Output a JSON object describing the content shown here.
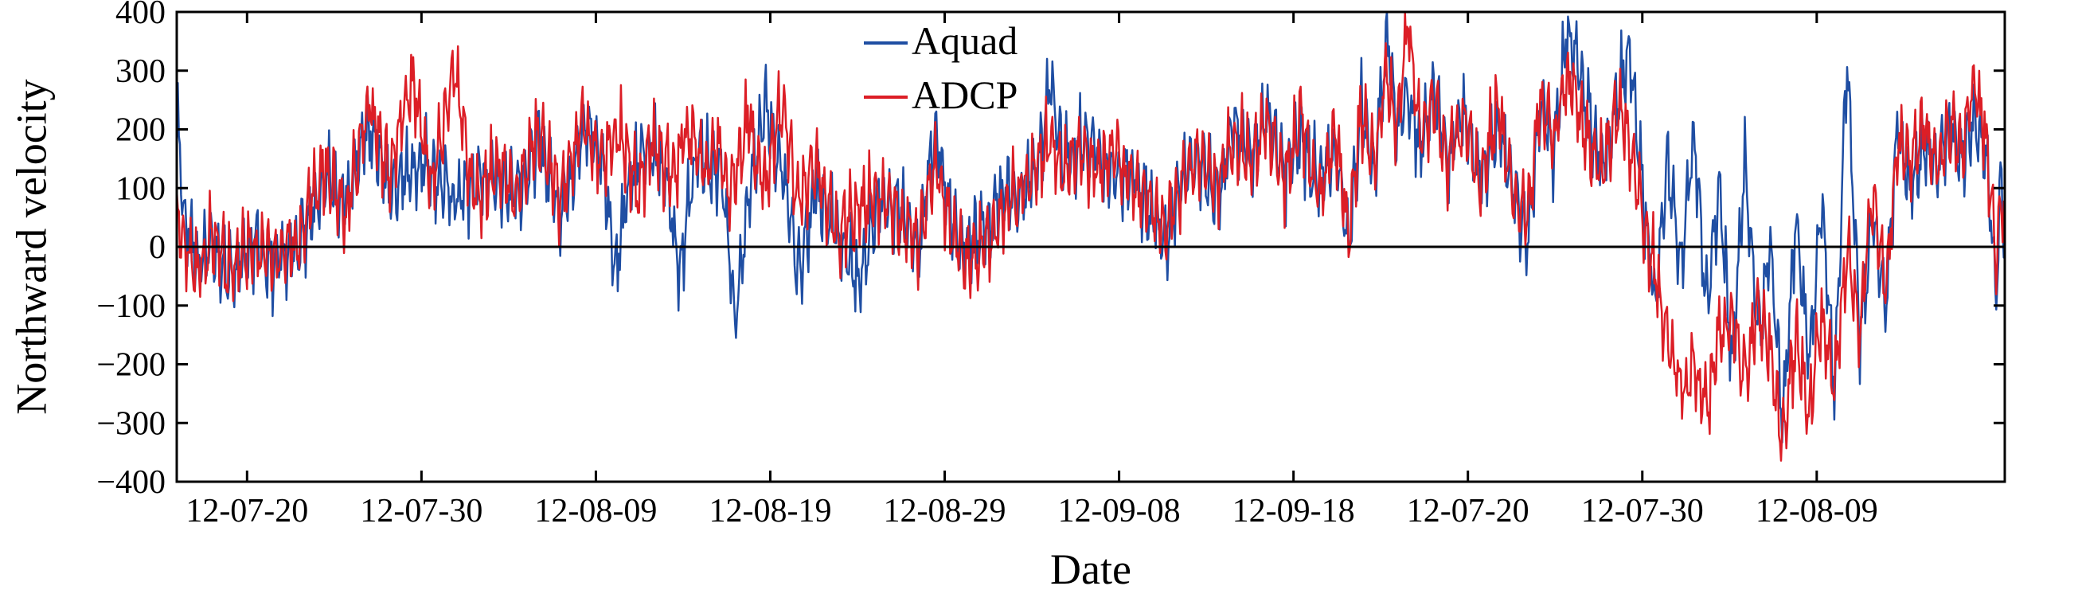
{
  "chart_data": {
    "type": "line",
    "title": "",
    "xlabel": "Date",
    "ylabel": "Northward velocity",
    "ylim": [
      -400,
      400
    ],
    "y_ticks": [
      -400,
      -300,
      -200,
      -100,
      0,
      100,
      200,
      300,
      400
    ],
    "x_tick_labels": [
      "12-07-20",
      "12-07-30",
      "12-08-09",
      "12-08-19",
      "12-08-29",
      "12-09-08",
      "12-09-18",
      "12-07-20",
      "12-07-30",
      "12-08-09"
    ],
    "zero_line": true,
    "grid": false,
    "legend_position": "top-center",
    "series": [
      {
        "name": "Aquad",
        "color": "#1f4ea3",
        "anchors": [
          [
            0,
            250
          ],
          [
            2,
            20
          ],
          [
            3,
            40
          ],
          [
            5,
            -30
          ],
          [
            8,
            10
          ],
          [
            12,
            -50
          ],
          [
            18,
            0
          ],
          [
            22,
            -30
          ],
          [
            28,
            0
          ],
          [
            35,
            120
          ],
          [
            40,
            80
          ],
          [
            45,
            200
          ],
          [
            50,
            100
          ],
          [
            58,
            150
          ],
          [
            65,
            80
          ],
          [
            72,
            120
          ],
          [
            80,
            100
          ],
          [
            85,
            180
          ],
          [
            90,
            60
          ],
          [
            96,
            210
          ],
          [
            100,
            150
          ],
          [
            103,
            -40
          ],
          [
            106,
            100
          ],
          [
            110,
            180
          ],
          [
            115,
            120
          ],
          [
            118,
            -40
          ],
          [
            122,
            160
          ],
          [
            128,
            120
          ],
          [
            131,
            -135
          ],
          [
            134,
            90
          ],
          [
            138,
            240
          ],
          [
            142,
            130
          ],
          [
            146,
            -50
          ],
          [
            150,
            100
          ],
          [
            155,
            30
          ],
          [
            160,
            -60
          ],
          [
            165,
            80
          ],
          [
            170,
            60
          ],
          [
            174,
            -10
          ],
          [
            178,
            200
          ],
          [
            182,
            40
          ],
          [
            186,
            0
          ],
          [
            190,
            30
          ],
          [
            194,
            100
          ],
          [
            198,
            80
          ],
          [
            202,
            140
          ],
          [
            205,
            270
          ],
          [
            208,
            150
          ],
          [
            212,
            180
          ],
          [
            216,
            160
          ],
          [
            220,
            110
          ],
          [
            224,
            130
          ],
          [
            228,
            70
          ],
          [
            232,
            0
          ],
          [
            236,
            120
          ],
          [
            240,
            150
          ],
          [
            244,
            90
          ],
          [
            248,
            200
          ],
          [
            252,
            160
          ],
          [
            256,
            230
          ],
          [
            260,
            120
          ],
          [
            264,
            190
          ],
          [
            268,
            100
          ],
          [
            272,
            170
          ],
          [
            275,
            0
          ],
          [
            278,
            250
          ],
          [
            281,
            120
          ],
          [
            284,
            375
          ],
          [
            286,
            200
          ],
          [
            289,
            260
          ],
          [
            292,
            170
          ],
          [
            295,
            270
          ],
          [
            298,
            150
          ],
          [
            302,
            230
          ],
          [
            306,
            120
          ],
          [
            310,
            200
          ],
          [
            314,
            100
          ],
          [
            317,
            0
          ],
          [
            320,
            250
          ],
          [
            323,
            160
          ],
          [
            326,
            350
          ],
          [
            329,
            320
          ],
          [
            332,
            200
          ],
          [
            335,
            140
          ],
          [
            338,
            250
          ],
          [
            341,
            340
          ],
          [
            344,
            100
          ],
          [
            347,
            -100
          ],
          [
            350,
            150
          ],
          [
            353,
            -50
          ],
          [
            356,
            200
          ],
          [
            359,
            -100
          ],
          [
            362,
            100
          ],
          [
            365,
            -200
          ],
          [
            368,
            150
          ],
          [
            371,
            -150
          ],
          [
            374,
            0
          ],
          [
            377,
            -300
          ],
          [
            380,
            50
          ],
          [
            383,
            -200
          ],
          [
            386,
            80
          ],
          [
            389,
            -250
          ],
          [
            392,
            320
          ],
          [
            395,
            -150
          ],
          [
            398,
            50
          ],
          [
            401,
            -100
          ],
          [
            404,
            200
          ],
          [
            407,
            100
          ],
          [
            410,
            180
          ],
          [
            413,
            130
          ],
          [
            416,
            210
          ],
          [
            419,
            160
          ],
          [
            422,
            220
          ],
          [
            425,
            120
          ],
          [
            427,
            -80
          ],
          [
            428,
            110
          ],
          [
            429,
            20
          ]
        ]
      },
      {
        "name": "ADCP",
        "color": "#dc1e26",
        "anchors": [
          [
            0,
            60
          ],
          [
            2,
            0
          ],
          [
            5,
            -40
          ],
          [
            8,
            20
          ],
          [
            12,
            -40
          ],
          [
            18,
            0
          ],
          [
            22,
            -20
          ],
          [
            28,
            0
          ],
          [
            35,
            140
          ],
          [
            40,
            60
          ],
          [
            45,
            250
          ],
          [
            50,
            120
          ],
          [
            55,
            290
          ],
          [
            60,
            100
          ],
          [
            65,
            300
          ],
          [
            70,
            80
          ],
          [
            75,
            140
          ],
          [
            80,
            90
          ],
          [
            85,
            200
          ],
          [
            90,
            80
          ],
          [
            95,
            210
          ],
          [
            100,
            140
          ],
          [
            104,
            200
          ],
          [
            108,
            100
          ],
          [
            112,
            180
          ],
          [
            116,
            120
          ],
          [
            120,
            200
          ],
          [
            124,
            130
          ],
          [
            127,
            180
          ],
          [
            130,
            90
          ],
          [
            134,
            220
          ],
          [
            138,
            100
          ],
          [
            142,
            250
          ],
          [
            146,
            80
          ],
          [
            150,
            140
          ],
          [
            155,
            20
          ],
          [
            160,
            60
          ],
          [
            165,
            90
          ],
          [
            170,
            50
          ],
          [
            174,
            0
          ],
          [
            178,
            140
          ],
          [
            182,
            20
          ],
          [
            186,
            -30
          ],
          [
            190,
            10
          ],
          [
            194,
            60
          ],
          [
            198,
            100
          ],
          [
            202,
            140
          ],
          [
            205,
            180
          ],
          [
            208,
            130
          ],
          [
            212,
            170
          ],
          [
            216,
            140
          ],
          [
            220,
            160
          ],
          [
            224,
            110
          ],
          [
            228,
            80
          ],
          [
            232,
            20
          ],
          [
            236,
            110
          ],
          [
            240,
            160
          ],
          [
            244,
            100
          ],
          [
            248,
            190
          ],
          [
            252,
            150
          ],
          [
            256,
            200
          ],
          [
            260,
            120
          ],
          [
            264,
            210
          ],
          [
            268,
            90
          ],
          [
            272,
            190
          ],
          [
            275,
            20
          ],
          [
            278,
            230
          ],
          [
            281,
            150
          ],
          [
            284,
            300
          ],
          [
            286,
            200
          ],
          [
            289,
            390
          ],
          [
            292,
            180
          ],
          [
            295,
            250
          ],
          [
            298,
            150
          ],
          [
            302,
            220
          ],
          [
            306,
            110
          ],
          [
            310,
            240
          ],
          [
            314,
            80
          ],
          [
            317,
            50
          ],
          [
            320,
            260
          ],
          [
            323,
            180
          ],
          [
            326,
            290
          ],
          [
            329,
            240
          ],
          [
            332,
            160
          ],
          [
            335,
            130
          ],
          [
            338,
            230
          ],
          [
            341,
            170
          ],
          [
            344,
            50
          ],
          [
            347,
            -50
          ],
          [
            350,
            -150
          ],
          [
            353,
            -250
          ],
          [
            356,
            -200
          ],
          [
            359,
            -280
          ],
          [
            362,
            -150
          ],
          [
            365,
            -120
          ],
          [
            368,
            -220
          ],
          [
            371,
            -100
          ],
          [
            374,
            -180
          ],
          [
            377,
            -330
          ],
          [
            380,
            -150
          ],
          [
            383,
            -290
          ],
          [
            386,
            -120
          ],
          [
            389,
            -240
          ],
          [
            392,
            0
          ],
          [
            395,
            -150
          ],
          [
            398,
            100
          ],
          [
            401,
            -80
          ],
          [
            404,
            180
          ],
          [
            407,
            150
          ],
          [
            410,
            210
          ],
          [
            413,
            140
          ],
          [
            416,
            200
          ],
          [
            419,
            170
          ],
          [
            422,
            290
          ],
          [
            425,
            150
          ],
          [
            427,
            -30
          ],
          [
            428,
            70
          ],
          [
            429,
            80
          ]
        ]
      }
    ]
  }
}
